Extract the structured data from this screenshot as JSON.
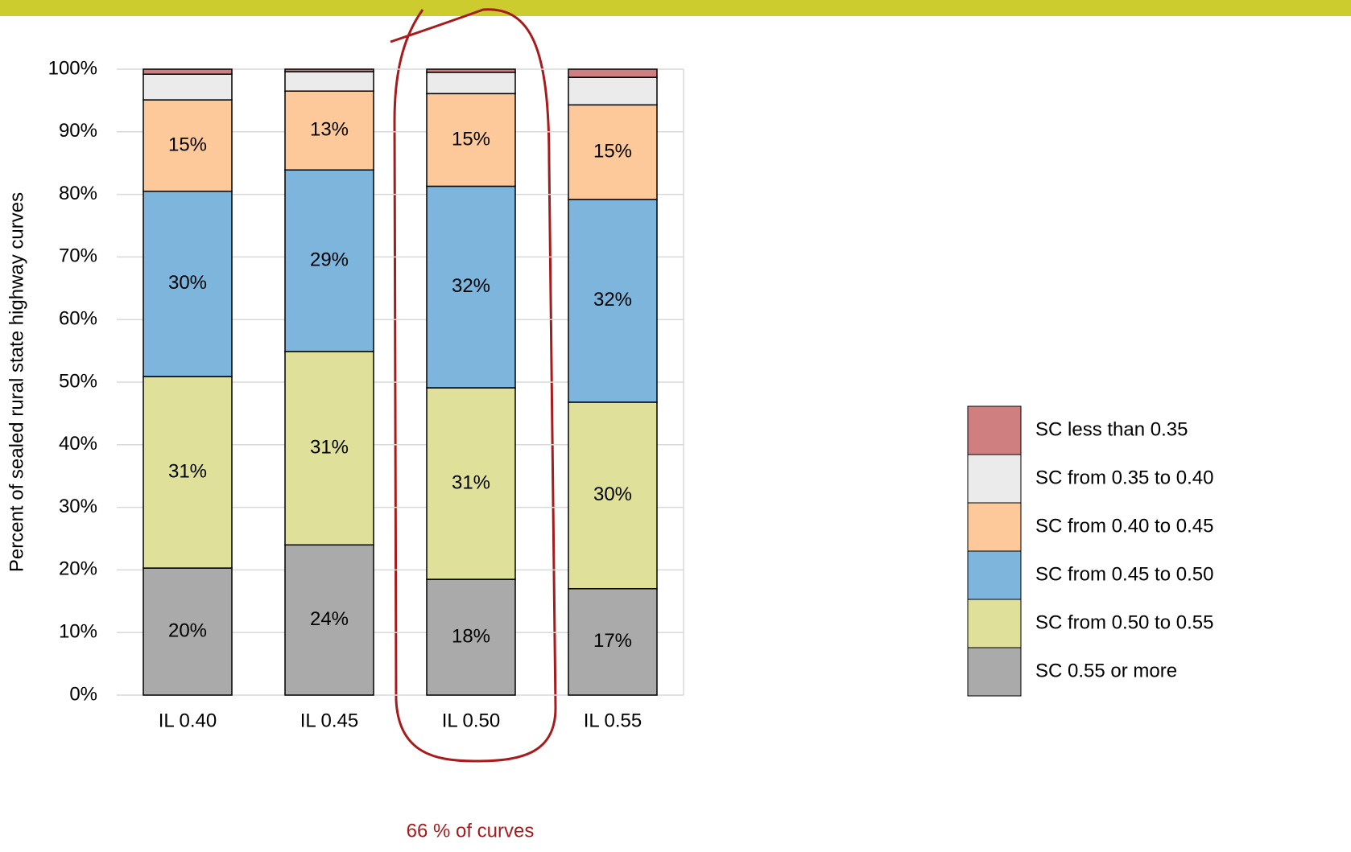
{
  "chart_data": {
    "type": "stacked_bar",
    "y_label": "Percent of sealed rural state highway curves",
    "categories": [
      "IL 0.40",
      "IL 0.45",
      "IL 0.50",
      "IL 0.55"
    ],
    "series": [
      {
        "name": "SC 0.55 or more",
        "color": "#aaaaaa",
        "values": [
          20.3,
          24.0,
          18.5,
          17.0
        ],
        "value_labels": [
          "20%",
          "24%",
          "18%",
          "17%"
        ]
      },
      {
        "name": "SC from 0.50 to 0.55",
        "color": "#dfe19a",
        "values": [
          30.6,
          30.9,
          30.6,
          29.8
        ],
        "value_labels": [
          "31%",
          "31%",
          "31%",
          "30%"
        ]
      },
      {
        "name": "SC from 0.45 to 0.50",
        "color": "#7eb5dc",
        "values": [
          29.6,
          29.0,
          32.2,
          32.4
        ],
        "value_labels": [
          "30%",
          "29%",
          "32%",
          "32%"
        ]
      },
      {
        "name": "SC from 0.40 to 0.45",
        "color": "#fdc99a",
        "values": [
          14.6,
          12.6,
          14.8,
          15.1
        ],
        "value_labels": [
          "15%",
          "13%",
          "15%",
          "15%"
        ]
      },
      {
        "name": "SC from 0.35 to 0.40",
        "color": "#ebebeb",
        "values": [
          4.1,
          3.1,
          3.4,
          4.4
        ]
      },
      {
        "name": "SC less than 0.35",
        "color": "#cf7f80",
        "values": [
          0.8,
          0.4,
          0.5,
          1.3
        ]
      }
    ],
    "ylim": [
      0,
      100
    ],
    "yticks": [
      {
        "value": 0,
        "label": "0%"
      },
      {
        "value": 10,
        "label": "10%"
      },
      {
        "value": 20,
        "label": "20%"
      },
      {
        "value": 30,
        "label": "30%"
      },
      {
        "value": 40,
        "label": "40%"
      },
      {
        "value": 50,
        "label": "50%"
      },
      {
        "value": 60,
        "label": "60%"
      },
      {
        "value": 70,
        "label": "70%"
      },
      {
        "value": 80,
        "label": "80%"
      },
      {
        "value": 90,
        "label": "90%"
      },
      {
        "value": 100,
        "label": "100%"
      }
    ],
    "grid": true,
    "legend": "right",
    "annotation": "66 % of curves"
  }
}
